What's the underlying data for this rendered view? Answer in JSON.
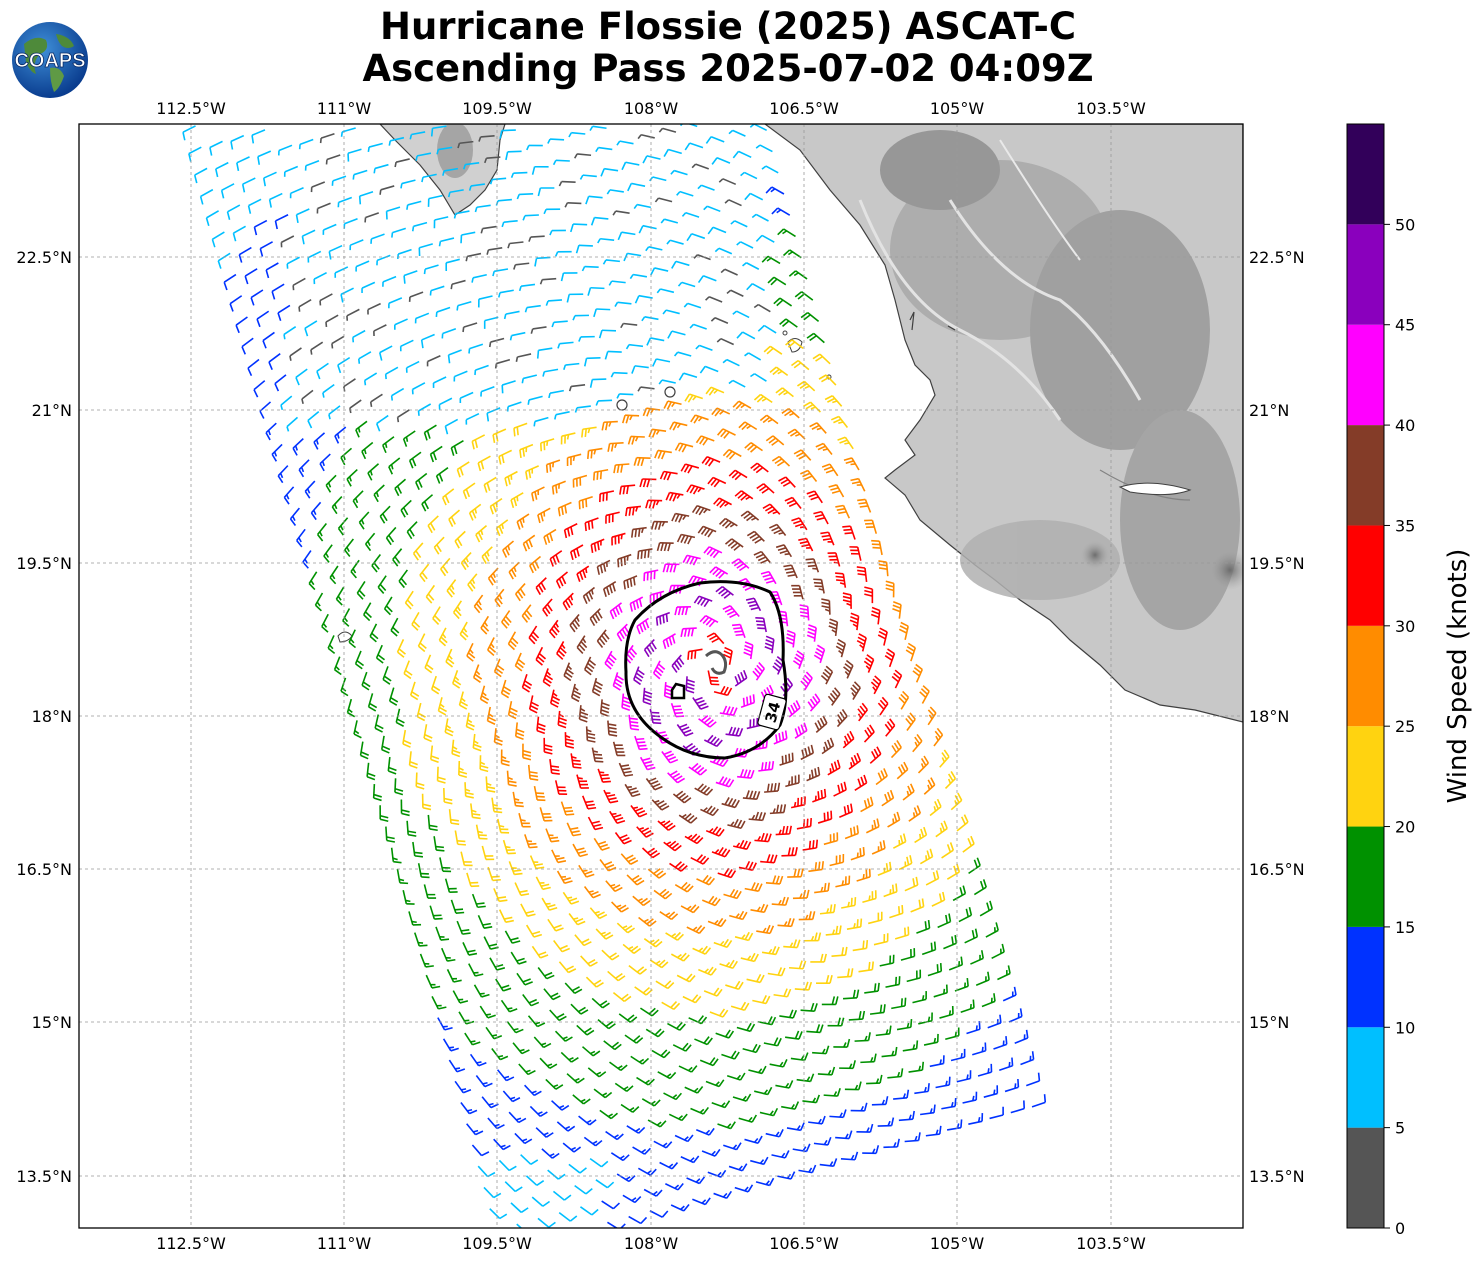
{
  "figure": {
    "title_line1": "Hurricane Flossie (2025) ASCAT-C",
    "title_line2": "Ascending Pass 2025-07-02 04:09Z",
    "logo_text": "COAPS"
  },
  "map": {
    "lon_ticks": [
      "112.5°W",
      "111°W",
      "109.5°W",
      "108°W",
      "106.5°W",
      "105°W",
      "103.5°W"
    ],
    "lat_ticks": [
      "22.5°N",
      "21°N",
      "19.5°N",
      "18°N",
      "16.5°N",
      "15°N",
      "13.5°N"
    ],
    "contour_label": "34",
    "gridlines": true
  },
  "colorbar": {
    "label": "Wind Speed (knots)",
    "tick_labels": [
      "0",
      "5",
      "10",
      "15",
      "20",
      "25",
      "30",
      "35",
      "40",
      "45",
      "50"
    ],
    "bins": [
      {
        "min": 0,
        "max": 5,
        "color": "#555555"
      },
      {
        "min": 5,
        "max": 10,
        "color": "#00bfff"
      },
      {
        "min": 10,
        "max": 15,
        "color": "#0032ff"
      },
      {
        "min": 15,
        "max": 20,
        "color": "#009100"
      },
      {
        "min": 20,
        "max": 25,
        "color": "#ffd310"
      },
      {
        "min": 25,
        "max": 30,
        "color": "#ff8c00"
      },
      {
        "min": 30,
        "max": 35,
        "color": "#ff0000"
      },
      {
        "min": 35,
        "max": 40,
        "color": "#843c28"
      },
      {
        "min": 40,
        "max": 45,
        "color": "#ff00ff"
      },
      {
        "min": 45,
        "max": 50,
        "color": "#8a00bd"
      },
      {
        "min": 50,
        "max": 55,
        "color": "#32005a"
      }
    ]
  }
}
